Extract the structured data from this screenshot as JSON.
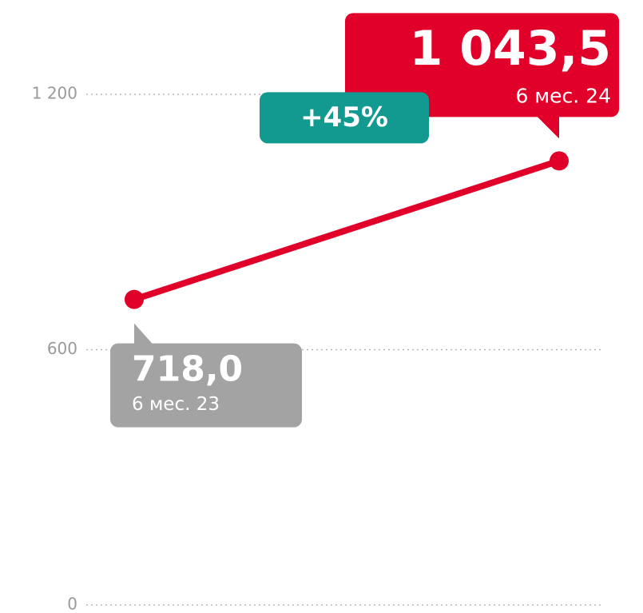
{
  "chart_data": {
    "type": "line",
    "categories": [
      "6 мес. 23",
      "6 мес. 24"
    ],
    "values": [
      718.0,
      1043.5
    ],
    "value_labels": [
      "718,0",
      "1 043,5"
    ],
    "colors": [
      "#a3a3a3",
      "#e1002a"
    ],
    "color": "#e1002a",
    "annotation": "+45%",
    "annotation_color": "#139a90",
    "ylim": [
      0,
      1200
    ],
    "yticks": [
      0,
      600,
      {
        "value": 1200,
        "label": "1 200"
      }
    ],
    "grid": true
  }
}
